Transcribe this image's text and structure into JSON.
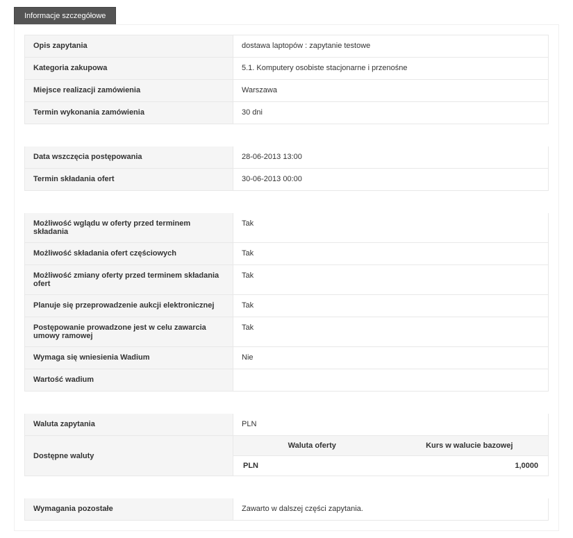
{
  "tab_title": "Informacje szczegółowe",
  "groups": [
    [
      {
        "label": "Opis zapytania",
        "value": "dostawa laptopów : zapytanie testowe"
      },
      {
        "label": "Kategoria zakupowa",
        "value": "5.1. Komputery osobiste stacjonarne i przenośne"
      },
      {
        "label": "Miejsce realizacji zamówienia",
        "value": "Warszawa"
      },
      {
        "label": "Termin wykonania zamówienia",
        "value": "30 dni"
      }
    ],
    [
      {
        "label": "Data wszczęcia postępowania",
        "value": "28-06-2013 13:00"
      },
      {
        "label": "Termin składania ofert",
        "value": "30-06-2013 00:00"
      }
    ],
    [
      {
        "label": "Możliwość wglądu w oferty przed terminem składania",
        "value": "Tak"
      },
      {
        "label": "Możliwość składania ofert częściowych",
        "value": "Tak"
      },
      {
        "label": "Możliwość zmiany oferty przed terminem składania ofert",
        "value": "Tak"
      },
      {
        "label": "Planuje się przeprowadzenie aukcji elektronicznej",
        "value": "Tak"
      },
      {
        "label": "Postępowanie prowadzone jest w celu zawarcia umowy ramowej",
        "value": "Tak"
      },
      {
        "label": "Wymaga się wniesienia Wadium",
        "value": "Nie"
      },
      {
        "label": "Wartość wadium",
        "value": ""
      }
    ]
  ],
  "currency_label": "Waluta zapytania",
  "currency_value": "PLN",
  "available_label": "Dostępne waluty",
  "available_headers": {
    "currency": "Waluta oferty",
    "rate": "Kurs w walucie bazowej"
  },
  "available_row": {
    "currency": "PLN",
    "rate": "1,0000"
  },
  "remaining_label": "Wymagania pozostałe",
  "remaining_value": "Zawarto w dalszej części zapytania."
}
